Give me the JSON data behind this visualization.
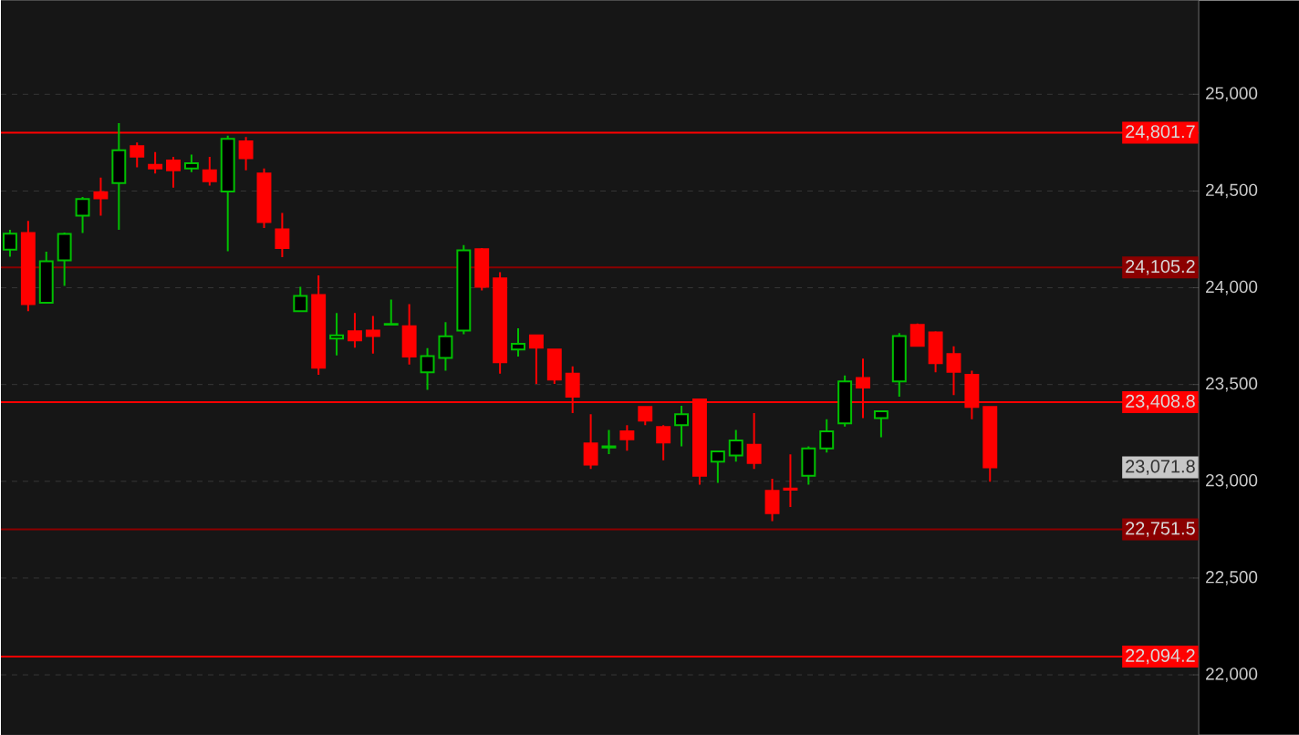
{
  "chart_data": {
    "type": "candlestick",
    "categories": [
      null,
      null,
      null,
      null,
      null,
      null,
      null,
      null,
      null,
      null,
      null,
      null,
      null,
      null,
      null,
      null,
      null,
      null,
      null,
      null,
      null,
      null,
      null,
      null,
      null,
      null,
      null,
      null,
      null,
      null,
      null,
      null,
      null,
      null,
      null,
      null,
      null,
      null,
      null,
      null,
      null,
      null,
      null,
      null,
      null,
      null,
      null,
      null,
      null,
      null,
      null,
      null,
      null,
      null,
      null,
      null,
      null,
      null,
      null,
      null,
      null,
      null,
      null,
      null,
      null,
      null
    ],
    "ohlc": [
      [
        24197,
        24300,
        24160,
        24280
      ],
      [
        24283,
        24346,
        23879,
        23916
      ],
      [
        23923,
        24186,
        23923,
        24137
      ],
      [
        24142,
        24285,
        24010,
        24278
      ],
      [
        24372,
        24469,
        24283,
        24459
      ],
      [
        24494,
        24569,
        24372,
        24462
      ],
      [
        24541,
        24851,
        24299,
        24710
      ],
      [
        24732,
        24751,
        24622,
        24678
      ],
      [
        24635,
        24701,
        24591,
        24616
      ],
      [
        24657,
        24676,
        24518,
        24607
      ],
      [
        24616,
        24688,
        24597,
        24644
      ],
      [
        24607,
        24676,
        24528,
        24550
      ],
      [
        24497,
        24786,
        24189,
        24770
      ],
      [
        24757,
        24779,
        24607,
        24669
      ],
      [
        24591,
        24616,
        24309,
        24340
      ],
      [
        24302,
        24387,
        24158,
        24205
      ],
      [
        23879,
        24005,
        23879,
        23958
      ],
      [
        23963,
        24064,
        23550,
        23587
      ],
      [
        23738,
        23869,
        23650,
        23754
      ],
      [
        23775,
        23869,
        23691,
        23728
      ],
      [
        23779,
        23854,
        23660,
        23751
      ],
      [
        23810,
        23939,
        23808,
        23813
      ],
      [
        23801,
        23916,
        23603,
        23644
      ],
      [
        23563,
        23688,
        23472,
        23647
      ],
      [
        23638,
        23822,
        23572,
        23749
      ],
      [
        23779,
        24221,
        23760,
        24193
      ],
      [
        24199,
        24205,
        23986,
        24005
      ],
      [
        24048,
        24080,
        23556,
        23615
      ],
      [
        23681,
        23791,
        23644,
        23710
      ],
      [
        23754,
        23754,
        23503,
        23691
      ],
      [
        23681,
        23685,
        23503,
        23525
      ],
      [
        23556,
        23594,
        23352,
        23437
      ],
      [
        23196,
        23346,
        23064,
        23086
      ],
      [
        23175,
        23265,
        23140,
        23180
      ],
      [
        23258,
        23290,
        23158,
        23217
      ],
      [
        23384,
        23384,
        23290,
        23314
      ],
      [
        23280,
        23290,
        23108,
        23201
      ],
      [
        23290,
        23390,
        23180,
        23346
      ],
      [
        23423,
        23423,
        22982,
        23029
      ],
      [
        23102,
        23155,
        22992,
        23155
      ],
      [
        23133,
        23265,
        23102,
        23211
      ],
      [
        23189,
        23352,
        23064,
        23095
      ],
      [
        22951,
        23013,
        22794,
        22835
      ],
      [
        22963,
        23139,
        22867,
        22957
      ],
      [
        23029,
        23180,
        22982,
        23170
      ],
      [
        23170,
        23321,
        23149,
        23258
      ],
      [
        23299,
        23547,
        23283,
        23516
      ],
      [
        23534,
        23634,
        23327,
        23484
      ],
      [
        23327,
        23362,
        23227,
        23362
      ],
      [
        23516,
        23766,
        23437,
        23751
      ],
      [
        23808,
        23815,
        23695,
        23700
      ],
      [
        23770,
        23775,
        23563,
        23610
      ],
      [
        23657,
        23697,
        23446,
        23566
      ],
      [
        23550,
        23572,
        23321,
        23384
      ],
      [
        23384,
        23384,
        22998,
        23071.8
      ],
      null,
      null,
      null,
      null,
      null,
      null,
      null,
      null,
      null,
      null,
      null
    ],
    "colors": [
      "#00c000",
      "#ff0000",
      "#00c000",
      "#00c000",
      "#00c000",
      "#ff0000",
      "#00c000",
      "#ff0000",
      "#ff0000",
      "#ff0000",
      "#00c000",
      "#ff0000",
      "#00c000",
      "#ff0000",
      "#ff0000",
      "#ff0000",
      "#00c000",
      "#ff0000",
      "#00c000",
      "#ff0000",
      "#ff0000",
      "#00c000",
      "#ff0000",
      "#00c000",
      "#00c000",
      "#00c000",
      "#ff0000",
      "#ff0000",
      "#00c000",
      "#ff0000",
      "#ff0000",
      "#ff0000",
      "#ff0000",
      "#00c000",
      "#ff0000",
      "#ff0000",
      "#ff0000",
      "#00c000",
      "#ff0000",
      "#00c000",
      "#00c000",
      "#ff0000",
      "#ff0000",
      "#ff0000",
      "#00c000",
      "#00c000",
      "#00c000",
      "#ff0000",
      "#00c000",
      "#00c000",
      "#ff0000",
      "#ff0000",
      "#ff0000",
      "#ff0000",
      "#ff0000",
      null,
      null,
      null,
      null,
      null,
      null,
      null,
      null,
      null,
      null,
      null
    ],
    "ylim": [
      21690,
      25485
    ],
    "yticks": [
      {
        "value": 22000,
        "label": "22,000"
      },
      {
        "value": 22500,
        "label": "22,500"
      },
      {
        "value": 23000,
        "label": "23,000"
      },
      {
        "value": 23500,
        "label": "23,500"
      },
      {
        "value": 24000,
        "label": "24,000"
      },
      {
        "value": 24500,
        "label": "24,500"
      },
      {
        "value": 25000,
        "label": "25,000"
      }
    ],
    "grid": "y",
    "ref_lines": [
      {
        "axis": "y",
        "value": 24801.7,
        "label": "24,801.7",
        "color": "#ff0000"
      },
      {
        "axis": "y",
        "value": 24105.2,
        "label": "24,105.2",
        "color": "#8b0000"
      },
      {
        "axis": "y",
        "value": 23408.8,
        "label": "23,408.8",
        "color": "#ff0000"
      },
      {
        "axis": "y",
        "value": 22751.5,
        "label": "22,751.5",
        "color": "#8b0000"
      },
      {
        "axis": "y",
        "value": 22094.2,
        "label": "22,094.2",
        "color": "#ff0000"
      }
    ],
    "annotations": [
      "23,071.8"
    ]
  }
}
